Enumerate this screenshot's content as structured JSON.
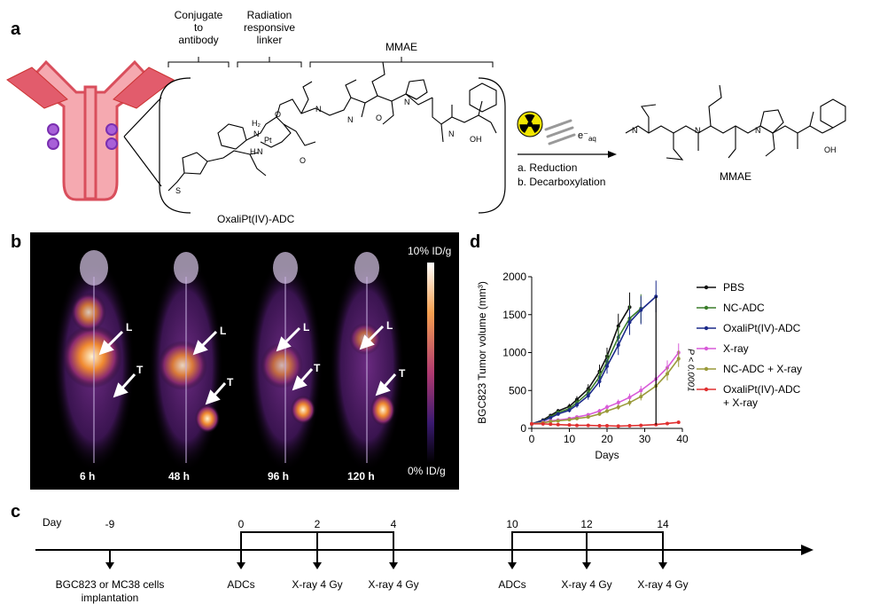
{
  "panel_a": {
    "letter": "a",
    "bracket_labels": [
      "Conjugate\nto\nantibody",
      "Radiation\nresponsive\nlinker",
      "MMAE"
    ],
    "conjugate_name": "OxaliPt(IV)-ADC",
    "reaction_reagent": "e⁻",
    "reaction_reagent_sub": "aq",
    "steps": [
      "a. Reduction",
      "b. Decarboxylation"
    ],
    "product_name": "MMAE",
    "atom_labels": {
      "h2": "H₂",
      "n": "N",
      "pt": "Pt",
      "h": "H",
      "o": "O",
      "oh": "OH",
      "s": "S"
    }
  },
  "panel_b": {
    "letter": "b",
    "scale_max": "10% ID/g",
    "scale_min": "0% ID/g",
    "timepoints": [
      "6 h",
      "48 h",
      "96 h",
      "120 h"
    ],
    "arrow_labels": {
      "liver": "L",
      "tumor": "T"
    },
    "colors": {
      "background": "#000000",
      "hot": "#fff3d0",
      "mid": "#e07020",
      "low": "#5a1a70"
    }
  },
  "panel_c": {
    "letter": "c",
    "day_label": "Day",
    "days": [
      "-9",
      "0",
      "2",
      "4",
      "10",
      "12",
      "14"
    ],
    "events": [
      "BGC823 or MC38 cells\nimplantation",
      "ADCs",
      "X-ray 4 Gy",
      "X-ray 4 Gy",
      "ADCs",
      "X-ray 4 Gy",
      "X-ray 4 Gy"
    ]
  },
  "panel_d": {
    "letter": "d",
    "p_value": "P < 0.0001",
    "chart_data": {
      "type": "line",
      "title": "",
      "xlabel": "Days",
      "ylabel": "BGC823 Tumor volume (mm³)",
      "xlim": [
        0,
        40
      ],
      "ylim": [
        0,
        2000
      ],
      "xticks": [
        0,
        10,
        20,
        30,
        40
      ],
      "yticks": [
        0,
        500,
        1000,
        1500,
        2000
      ],
      "legend_position": "right",
      "series": [
        {
          "name": "PBS",
          "color": "#111111",
          "x": [
            0,
            3,
            5,
            7,
            10,
            12,
            15,
            18,
            20,
            23,
            26
          ],
          "y": [
            60,
            110,
            170,
            230,
            290,
            380,
            520,
            750,
            950,
            1350,
            1600
          ]
        },
        {
          "name": "NC-ADC",
          "color": "#3a7d2a",
          "x": [
            0,
            3,
            5,
            7,
            10,
            12,
            15,
            18,
            20,
            23,
            26,
            29
          ],
          "y": [
            60,
            100,
            150,
            210,
            260,
            340,
            470,
            680,
            880,
            1200,
            1450,
            1580
          ]
        },
        {
          "name": "OxaliPt(IV)-ADC",
          "color": "#1c2a8a",
          "x": [
            0,
            3,
            5,
            7,
            10,
            12,
            15,
            18,
            20,
            23,
            26,
            29,
            33
          ],
          "y": [
            60,
            100,
            140,
            190,
            240,
            310,
            430,
            620,
            820,
            1100,
            1400,
            1560,
            1740
          ]
        },
        {
          "name": "X-ray",
          "color": "#d85ad8",
          "x": [
            0,
            3,
            5,
            7,
            10,
            12,
            15,
            18,
            20,
            23,
            26,
            29,
            33,
            36,
            39
          ],
          "y": [
            60,
            80,
            100,
            110,
            130,
            150,
            180,
            230,
            280,
            340,
            410,
            500,
            650,
            800,
            1000
          ]
        },
        {
          "name": "NC-ADC + X-ray",
          "color": "#9a9a3a",
          "x": [
            0,
            3,
            5,
            7,
            10,
            12,
            15,
            18,
            20,
            23,
            26,
            29,
            33,
            36,
            39
          ],
          "y": [
            60,
            75,
            90,
            100,
            115,
            130,
            150,
            190,
            230,
            280,
            340,
            420,
            560,
            720,
            920
          ]
        },
        {
          "name": "OxaliPt(IV)-ADC\n+ X-ray",
          "color": "#e03030",
          "x": [
            0,
            3,
            5,
            7,
            10,
            12,
            15,
            18,
            20,
            23,
            26,
            29,
            33,
            36,
            39
          ],
          "y": [
            60,
            60,
            55,
            50,
            45,
            40,
            40,
            35,
            35,
            30,
            35,
            40,
            50,
            65,
            80
          ]
        }
      ]
    }
  }
}
